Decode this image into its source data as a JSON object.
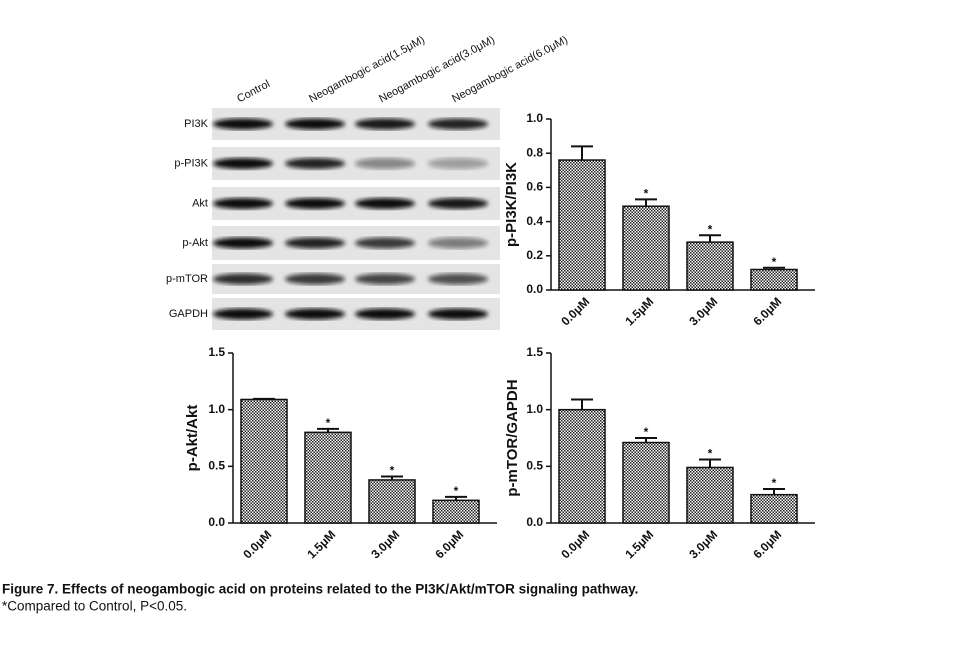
{
  "blot": {
    "lanes": [
      "Control",
      "Neogambogic acid(1.5μM)",
      "Neogambogic acid(3.0μM)",
      "Neogambogic acid(6.0μM)"
    ],
    "rows": [
      "PI3K",
      "p-PI3K",
      "Akt",
      "p-Akt",
      "p-mTOR",
      "GAPDH"
    ]
  },
  "chart_data": [
    {
      "type": "bar",
      "y_label": "p-PI3K/PI3K",
      "categories": [
        "0.0μM",
        "1.5μM",
        "3.0μM",
        "6.0μM"
      ],
      "values": [
        0.76,
        0.49,
        0.28,
        0.12
      ],
      "errors": [
        0.08,
        0.04,
        0.04,
        0.01
      ],
      "significance": [
        null,
        "*",
        "*",
        "*"
      ],
      "ylim": [
        0,
        1.0
      ],
      "yticks": [
        {
          "value": 0,
          "label": "0.0"
        },
        0.2,
        0.4,
        0.6,
        0.8,
        {
          "value": 1,
          "label": "1.0"
        }
      ]
    },
    {
      "type": "bar",
      "y_label": "p-Akt/Akt",
      "categories": [
        "0.0μM",
        "1.5μM",
        "3.0μM",
        "6.0μM"
      ],
      "values": [
        1.09,
        0.8,
        0.38,
        0.2
      ],
      "errors": [
        0.005,
        0.03,
        0.03,
        0.03
      ],
      "significance": [
        null,
        "*",
        "*",
        "*"
      ],
      "ylim": [
        0,
        1.5
      ],
      "yticks": [
        {
          "value": 0,
          "label": "0.0"
        },
        0.5,
        {
          "value": 1,
          "label": "1.0"
        },
        1.5
      ]
    },
    {
      "type": "bar",
      "y_label": "p-mTOR/GAPDH",
      "categories": [
        "0.0μM",
        "1.5μM",
        "3.0μM",
        "6.0μM"
      ],
      "values": [
        1.0,
        0.71,
        0.49,
        0.25
      ],
      "errors": [
        0.09,
        0.04,
        0.07,
        0.05
      ],
      "significance": [
        null,
        "*",
        "*",
        "*"
      ],
      "ylim": [
        0,
        1.5
      ],
      "yticks": [
        {
          "value": 0,
          "label": "0.0"
        },
        0.5,
        {
          "value": 1,
          "label": "1.0"
        },
        1.5
      ]
    }
  ],
  "caption": {
    "title": "Figure 7. Effects of neogambogic acid on proteins related to the PI3K/Akt/mTOR signaling pathway.",
    "note": "*Compared to Control, P<0.05."
  }
}
